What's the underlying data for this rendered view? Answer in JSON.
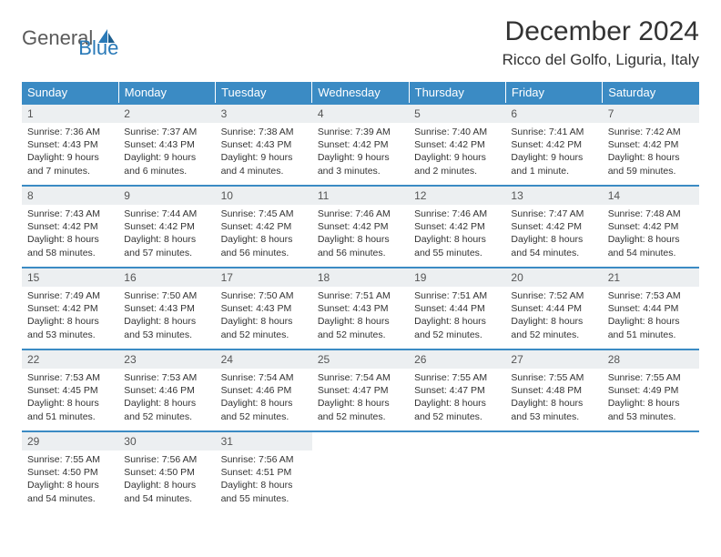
{
  "brand": {
    "part1": "General",
    "part2": "Blue"
  },
  "title": "December 2024",
  "location": "Ricco del Golfo, Liguria, Italy",
  "colors": {
    "header_bg": "#3b8bc4",
    "header_text": "#ffffff",
    "daynum_bg": "#eceff1",
    "week_border": "#3b8bc4",
    "body_text": "#333333",
    "brand_gray": "#5a5a5a",
    "brand_blue": "#2a7ab8",
    "page_bg": "#ffffff"
  },
  "typography": {
    "title_fontsize": 30,
    "location_fontsize": 17,
    "dayheader_fontsize": 13,
    "daynum_fontsize": 12,
    "body_fontsize": 10.5
  },
  "weekdays": [
    "Sunday",
    "Monday",
    "Tuesday",
    "Wednesday",
    "Thursday",
    "Friday",
    "Saturday"
  ],
  "weeks": [
    [
      {
        "n": "1",
        "sr": "Sunrise: 7:36 AM",
        "ss": "Sunset: 4:43 PM",
        "d1": "Daylight: 9 hours",
        "d2": "and 7 minutes."
      },
      {
        "n": "2",
        "sr": "Sunrise: 7:37 AM",
        "ss": "Sunset: 4:43 PM",
        "d1": "Daylight: 9 hours",
        "d2": "and 6 minutes."
      },
      {
        "n": "3",
        "sr": "Sunrise: 7:38 AM",
        "ss": "Sunset: 4:43 PM",
        "d1": "Daylight: 9 hours",
        "d2": "and 4 minutes."
      },
      {
        "n": "4",
        "sr": "Sunrise: 7:39 AM",
        "ss": "Sunset: 4:42 PM",
        "d1": "Daylight: 9 hours",
        "d2": "and 3 minutes."
      },
      {
        "n": "5",
        "sr": "Sunrise: 7:40 AM",
        "ss": "Sunset: 4:42 PM",
        "d1": "Daylight: 9 hours",
        "d2": "and 2 minutes."
      },
      {
        "n": "6",
        "sr": "Sunrise: 7:41 AM",
        "ss": "Sunset: 4:42 PM",
        "d1": "Daylight: 9 hours",
        "d2": "and 1 minute."
      },
      {
        "n": "7",
        "sr": "Sunrise: 7:42 AM",
        "ss": "Sunset: 4:42 PM",
        "d1": "Daylight: 8 hours",
        "d2": "and 59 minutes."
      }
    ],
    [
      {
        "n": "8",
        "sr": "Sunrise: 7:43 AM",
        "ss": "Sunset: 4:42 PM",
        "d1": "Daylight: 8 hours",
        "d2": "and 58 minutes."
      },
      {
        "n": "9",
        "sr": "Sunrise: 7:44 AM",
        "ss": "Sunset: 4:42 PM",
        "d1": "Daylight: 8 hours",
        "d2": "and 57 minutes."
      },
      {
        "n": "10",
        "sr": "Sunrise: 7:45 AM",
        "ss": "Sunset: 4:42 PM",
        "d1": "Daylight: 8 hours",
        "d2": "and 56 minutes."
      },
      {
        "n": "11",
        "sr": "Sunrise: 7:46 AM",
        "ss": "Sunset: 4:42 PM",
        "d1": "Daylight: 8 hours",
        "d2": "and 56 minutes."
      },
      {
        "n": "12",
        "sr": "Sunrise: 7:46 AM",
        "ss": "Sunset: 4:42 PM",
        "d1": "Daylight: 8 hours",
        "d2": "and 55 minutes."
      },
      {
        "n": "13",
        "sr": "Sunrise: 7:47 AM",
        "ss": "Sunset: 4:42 PM",
        "d1": "Daylight: 8 hours",
        "d2": "and 54 minutes."
      },
      {
        "n": "14",
        "sr": "Sunrise: 7:48 AM",
        "ss": "Sunset: 4:42 PM",
        "d1": "Daylight: 8 hours",
        "d2": "and 54 minutes."
      }
    ],
    [
      {
        "n": "15",
        "sr": "Sunrise: 7:49 AM",
        "ss": "Sunset: 4:42 PM",
        "d1": "Daylight: 8 hours",
        "d2": "and 53 minutes."
      },
      {
        "n": "16",
        "sr": "Sunrise: 7:50 AM",
        "ss": "Sunset: 4:43 PM",
        "d1": "Daylight: 8 hours",
        "d2": "and 53 minutes."
      },
      {
        "n": "17",
        "sr": "Sunrise: 7:50 AM",
        "ss": "Sunset: 4:43 PM",
        "d1": "Daylight: 8 hours",
        "d2": "and 52 minutes."
      },
      {
        "n": "18",
        "sr": "Sunrise: 7:51 AM",
        "ss": "Sunset: 4:43 PM",
        "d1": "Daylight: 8 hours",
        "d2": "and 52 minutes."
      },
      {
        "n": "19",
        "sr": "Sunrise: 7:51 AM",
        "ss": "Sunset: 4:44 PM",
        "d1": "Daylight: 8 hours",
        "d2": "and 52 minutes."
      },
      {
        "n": "20",
        "sr": "Sunrise: 7:52 AM",
        "ss": "Sunset: 4:44 PM",
        "d1": "Daylight: 8 hours",
        "d2": "and 52 minutes."
      },
      {
        "n": "21",
        "sr": "Sunrise: 7:53 AM",
        "ss": "Sunset: 4:44 PM",
        "d1": "Daylight: 8 hours",
        "d2": "and 51 minutes."
      }
    ],
    [
      {
        "n": "22",
        "sr": "Sunrise: 7:53 AM",
        "ss": "Sunset: 4:45 PM",
        "d1": "Daylight: 8 hours",
        "d2": "and 51 minutes."
      },
      {
        "n": "23",
        "sr": "Sunrise: 7:53 AM",
        "ss": "Sunset: 4:46 PM",
        "d1": "Daylight: 8 hours",
        "d2": "and 52 minutes."
      },
      {
        "n": "24",
        "sr": "Sunrise: 7:54 AM",
        "ss": "Sunset: 4:46 PM",
        "d1": "Daylight: 8 hours",
        "d2": "and 52 minutes."
      },
      {
        "n": "25",
        "sr": "Sunrise: 7:54 AM",
        "ss": "Sunset: 4:47 PM",
        "d1": "Daylight: 8 hours",
        "d2": "and 52 minutes."
      },
      {
        "n": "26",
        "sr": "Sunrise: 7:55 AM",
        "ss": "Sunset: 4:47 PM",
        "d1": "Daylight: 8 hours",
        "d2": "and 52 minutes."
      },
      {
        "n": "27",
        "sr": "Sunrise: 7:55 AM",
        "ss": "Sunset: 4:48 PM",
        "d1": "Daylight: 8 hours",
        "d2": "and 53 minutes."
      },
      {
        "n": "28",
        "sr": "Sunrise: 7:55 AM",
        "ss": "Sunset: 4:49 PM",
        "d1": "Daylight: 8 hours",
        "d2": "and 53 minutes."
      }
    ],
    [
      {
        "n": "29",
        "sr": "Sunrise: 7:55 AM",
        "ss": "Sunset: 4:50 PM",
        "d1": "Daylight: 8 hours",
        "d2": "and 54 minutes."
      },
      {
        "n": "30",
        "sr": "Sunrise: 7:56 AM",
        "ss": "Sunset: 4:50 PM",
        "d1": "Daylight: 8 hours",
        "d2": "and 54 minutes."
      },
      {
        "n": "31",
        "sr": "Sunrise: 7:56 AM",
        "ss": "Sunset: 4:51 PM",
        "d1": "Daylight: 8 hours",
        "d2": "and 55 minutes."
      },
      {
        "empty": true
      },
      {
        "empty": true
      },
      {
        "empty": true
      },
      {
        "empty": true
      }
    ]
  ]
}
